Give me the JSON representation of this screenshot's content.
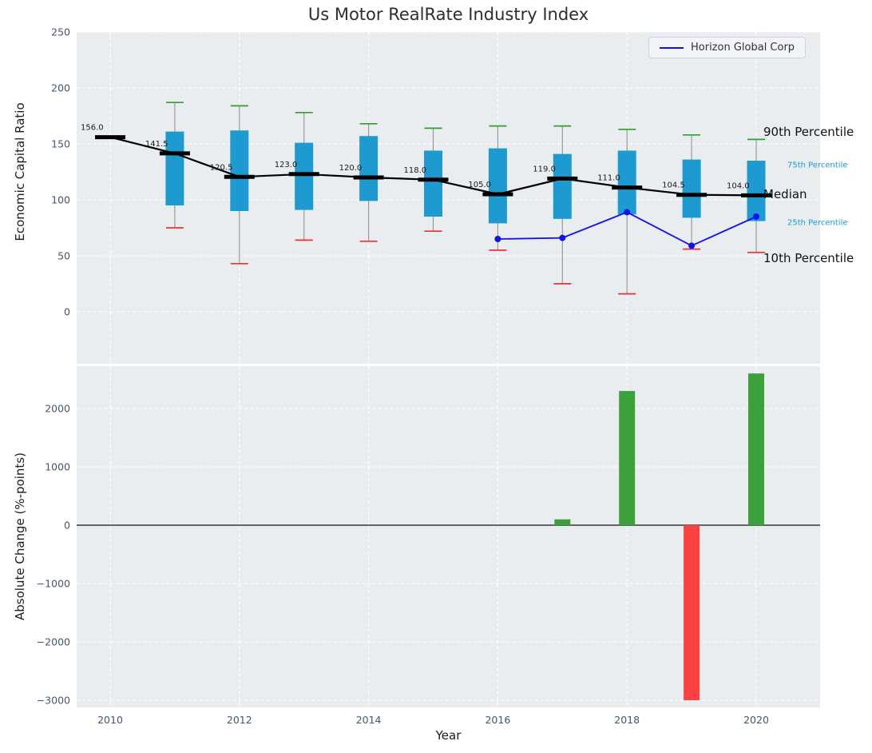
{
  "title": "Us Motor RealRate Industry Index",
  "colors": {
    "panel_bg": "#e9edf0",
    "grid": "#ffffff",
    "tick_label": "#46566b",
    "title_text": "#2d2d2d",
    "box_fill": "#1d9bd1",
    "whisker": "#9a9a9a",
    "cap_top": "#2ea12e",
    "cap_bottom": "#f03030",
    "median_line": "#000000",
    "company_line": "#1111ee",
    "bar_positive": "#3ba13b",
    "bar_negative": "#fb4141",
    "zero_line": "#111111",
    "annotation_primary": "#111111",
    "annotation_secondary": "#1b9cd0"
  },
  "chart_data": [
    {
      "type": "boxplot",
      "title": "Us Motor RealRate Industry Index",
      "ylabel": "Economic Capital Ratio",
      "ylim": [
        -46,
        250
      ],
      "yticks": [
        0,
        50,
        100,
        150,
        200,
        250
      ],
      "grid": true,
      "legend": {
        "label": "Horizon Global Corp",
        "position": "upper right"
      },
      "boxes": [
        {
          "year": 2010,
          "median": 156.0,
          "label": "156.0"
        },
        {
          "year": 2011,
          "p10": 75,
          "p25": 95,
          "median": 141.5,
          "p75": 161,
          "p90": 187,
          "label": "141.5"
        },
        {
          "year": 2012,
          "p10": 43,
          "p25": 90,
          "median": 120.5,
          "p75": 162,
          "p90": 184,
          "label": "120.5"
        },
        {
          "year": 2013,
          "p10": 64,
          "p25": 91,
          "median": 123.0,
          "p75": 151,
          "p90": 178,
          "label": "123.0"
        },
        {
          "year": 2014,
          "p10": 63,
          "p25": 99,
          "median": 120.0,
          "p75": 157,
          "p90": 168,
          "label": "120.0"
        },
        {
          "year": 2015,
          "p10": 72,
          "p25": 85,
          "median": 118.0,
          "p75": 144,
          "p90": 164,
          "label": "118.0"
        },
        {
          "year": 2016,
          "p10": 55,
          "p25": 79,
          "median": 105.0,
          "p75": 146,
          "p90": 166,
          "label": "105.0"
        },
        {
          "year": 2017,
          "p10": 25,
          "p25": 83,
          "median": 119.0,
          "p75": 141,
          "p90": 166,
          "label": "119.0"
        },
        {
          "year": 2018,
          "p10": 16,
          "p25": 87,
          "median": 111.0,
          "p75": 144,
          "p90": 163,
          "label": "111.0"
        },
        {
          "year": 2019,
          "p10": 56,
          "p25": 84,
          "median": 104.5,
          "p75": 136,
          "p90": 158,
          "label": "104.5"
        },
        {
          "year": 2020,
          "p10": 53,
          "p25": 81,
          "median": 104.0,
          "p75": 135,
          "p90": 154,
          "label": "104.0"
        }
      ],
      "series": [
        {
          "name": "Horizon Global Corp",
          "x": [
            2016,
            2017,
            2018,
            2019,
            2020
          ],
          "y": [
            65,
            66,
            89,
            59,
            85
          ]
        }
      ],
      "annotations": [
        {
          "text": "90th Percentile",
          "value": 161,
          "style": "primary"
        },
        {
          "text": "75th Percentile",
          "value": 131,
          "style": "secondary"
        },
        {
          "text": "Median",
          "value": 105,
          "style": "primary"
        },
        {
          "text": "25th Percentile",
          "value": 79,
          "style": "secondary"
        },
        {
          "text": "10th Percentile",
          "value": 48,
          "style": "primary"
        }
      ]
    },
    {
      "type": "bar",
      "ylabel": "Absolute Change (%-points)",
      "xlabel": "Year",
      "ylim": [
        -3120,
        2730
      ],
      "yticks": [
        -3000,
        -2000,
        -1000,
        0,
        1000,
        2000
      ],
      "xticks": [
        2010,
        2012,
        2014,
        2016,
        2018,
        2020
      ],
      "grid": true,
      "bars": [
        {
          "year": 2017,
          "value": 100
        },
        {
          "year": 2018,
          "value": 2300
        },
        {
          "year": 2019,
          "value": -3000
        },
        {
          "year": 2020,
          "value": 2600
        }
      ]
    }
  ]
}
